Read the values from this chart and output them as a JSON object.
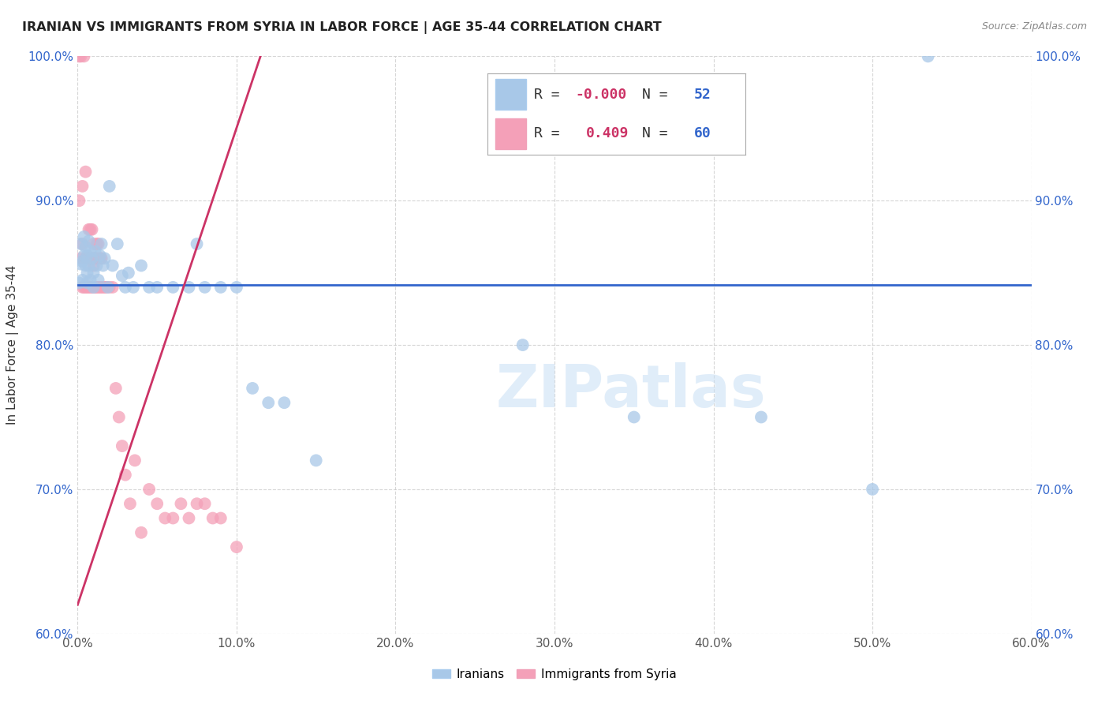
{
  "title": "IRANIAN VS IMMIGRANTS FROM SYRIA IN LABOR FORCE | AGE 35-44 CORRELATION CHART",
  "source": "Source: ZipAtlas.com",
  "ylabel": "In Labor Force | Age 35-44",
  "xlim": [
    0.0,
    0.6
  ],
  "ylim": [
    0.6,
    1.0
  ],
  "xticks": [
    0.0,
    0.1,
    0.2,
    0.3,
    0.4,
    0.5,
    0.6
  ],
  "xticklabels": [
    "0.0%",
    "10.0%",
    "20.0%",
    "30.0%",
    "40.0%",
    "50.0%",
    "60.0%"
  ],
  "yticks": [
    0.6,
    0.7,
    0.8,
    0.9,
    1.0
  ],
  "yticklabels": [
    "60.0%",
    "70.0%",
    "80.0%",
    "90.0%",
    "100.0%"
  ],
  "iranian_R": "-0.000",
  "iranian_N": "52",
  "syria_R": "0.409",
  "syria_N": "60",
  "blue_color": "#a8c8e8",
  "pink_color": "#f4a0b8",
  "blue_line_color": "#3366cc",
  "pink_line_color": "#cc3366",
  "watermark": "ZIPatlas",
  "iranians_x": [
    0.001,
    0.002,
    0.002,
    0.003,
    0.003,
    0.004,
    0.004,
    0.005,
    0.005,
    0.006,
    0.006,
    0.006,
    0.007,
    0.007,
    0.008,
    0.008,
    0.009,
    0.01,
    0.01,
    0.011,
    0.012,
    0.013,
    0.014,
    0.015,
    0.016,
    0.017,
    0.019,
    0.02,
    0.022,
    0.025,
    0.028,
    0.03,
    0.032,
    0.035,
    0.04,
    0.045,
    0.05,
    0.06,
    0.07,
    0.075,
    0.08,
    0.09,
    0.1,
    0.11,
    0.12,
    0.13,
    0.15,
    0.28,
    0.35,
    0.43,
    0.5,
    0.535
  ],
  "iranians_y": [
    0.843,
    0.856,
    0.87,
    0.858,
    0.845,
    0.862,
    0.875,
    0.855,
    0.868,
    0.85,
    0.843,
    0.862,
    0.872,
    0.855,
    0.845,
    0.865,
    0.86,
    0.85,
    0.84,
    0.865,
    0.855,
    0.845,
    0.862,
    0.87,
    0.855,
    0.86,
    0.84,
    0.91,
    0.855,
    0.87,
    0.848,
    0.84,
    0.85,
    0.84,
    0.855,
    0.84,
    0.84,
    0.84,
    0.84,
    0.87,
    0.84,
    0.84,
    0.84,
    0.77,
    0.76,
    0.76,
    0.72,
    0.8,
    0.75,
    0.75,
    0.7,
    1.0
  ],
  "syria_x": [
    0.001,
    0.001,
    0.002,
    0.002,
    0.003,
    0.003,
    0.003,
    0.004,
    0.004,
    0.005,
    0.005,
    0.005,
    0.006,
    0.006,
    0.007,
    0.007,
    0.007,
    0.008,
    0.008,
    0.008,
    0.009,
    0.009,
    0.01,
    0.01,
    0.01,
    0.01,
    0.011,
    0.011,
    0.012,
    0.012,
    0.012,
    0.013,
    0.013,
    0.014,
    0.014,
    0.015,
    0.015,
    0.016,
    0.017,
    0.018,
    0.02,
    0.022,
    0.024,
    0.026,
    0.028,
    0.03,
    0.033,
    0.036,
    0.04,
    0.045,
    0.05,
    0.055,
    0.06,
    0.065,
    0.07,
    0.075,
    0.08,
    0.085,
    0.09,
    0.1
  ],
  "syria_y": [
    1.0,
    0.9,
    1.0,
    0.86,
    0.91,
    0.87,
    0.84,
    1.0,
    0.84,
    0.86,
    0.84,
    0.92,
    0.86,
    0.84,
    0.86,
    0.88,
    0.84,
    0.86,
    0.88,
    0.84,
    0.88,
    0.84,
    0.87,
    0.855,
    0.84,
    0.86,
    0.86,
    0.84,
    0.87,
    0.84,
    0.86,
    0.87,
    0.84,
    0.84,
    0.86,
    0.84,
    0.86,
    0.84,
    0.84,
    0.84,
    0.84,
    0.84,
    0.77,
    0.75,
    0.73,
    0.71,
    0.69,
    0.72,
    0.67,
    0.7,
    0.69,
    0.68,
    0.68,
    0.69,
    0.68,
    0.69,
    0.69,
    0.68,
    0.68,
    0.66
  ]
}
